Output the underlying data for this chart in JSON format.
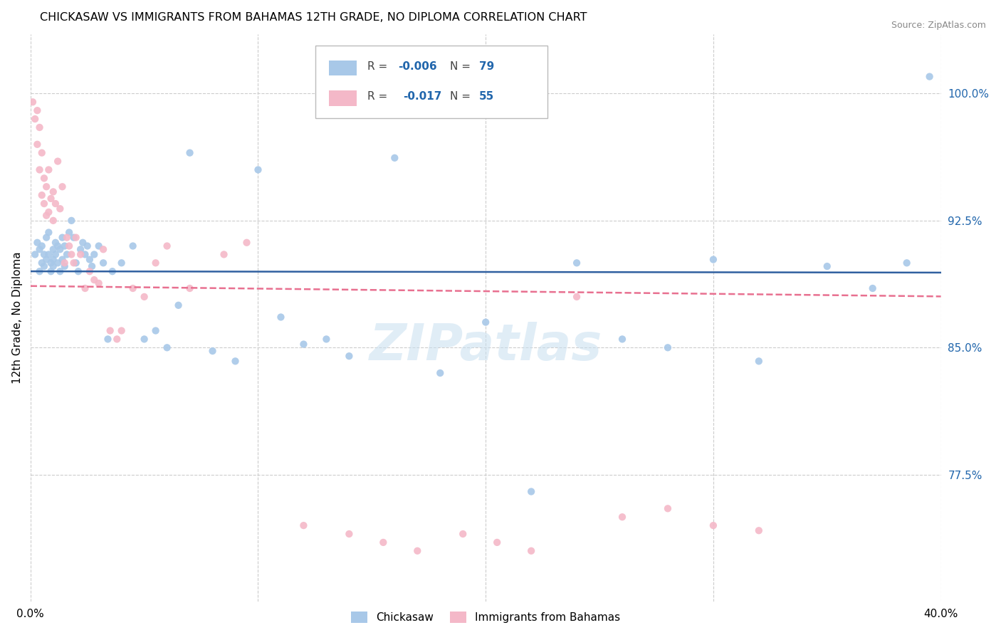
{
  "title": "CHICKASAW VS IMMIGRANTS FROM BAHAMAS 12TH GRADE, NO DIPLOMA CORRELATION CHART",
  "source": "Source: ZipAtlas.com",
  "ylabel": "12th Grade, No Diploma",
  "xlim": [
    0.0,
    40.0
  ],
  "ylim": [
    70.0,
    103.5
  ],
  "color_blue": "#a8c8e8",
  "color_pink": "#f4b8c8",
  "color_blue_line": "#3060a0",
  "color_pink_line": "#e87090",
  "watermark": "ZIPatlas",
  "chickasaw_x": [
    0.2,
    0.3,
    0.4,
    0.4,
    0.5,
    0.5,
    0.6,
    0.6,
    0.7,
    0.7,
    0.8,
    0.8,
    0.9,
    0.9,
    1.0,
    1.0,
    1.0,
    1.1,
    1.1,
    1.2,
    1.2,
    1.3,
    1.3,
    1.4,
    1.4,
    1.5,
    1.5,
    1.6,
    1.7,
    1.8,
    1.9,
    2.0,
    2.1,
    2.2,
    2.3,
    2.4,
    2.5,
    2.6,
    2.7,
    2.8,
    3.0,
    3.2,
    3.4,
    3.6,
    4.0,
    4.5,
    5.0,
    5.5,
    6.0,
    6.5,
    7.0,
    8.0,
    9.0,
    10.0,
    11.0,
    12.0,
    13.0,
    14.0,
    16.0,
    18.0,
    20.0,
    22.0,
    24.0,
    26.0,
    28.0,
    30.0,
    32.0,
    35.0,
    37.0,
    38.5,
    39.5
  ],
  "chickasaw_y": [
    90.5,
    91.2,
    90.8,
    89.5,
    91.0,
    90.0,
    90.5,
    89.8,
    91.5,
    90.2,
    91.8,
    90.5,
    90.0,
    89.5,
    90.8,
    90.2,
    89.8,
    91.2,
    90.5,
    91.0,
    90.0,
    90.8,
    89.5,
    91.5,
    90.2,
    91.0,
    89.8,
    90.5,
    91.8,
    92.5,
    91.5,
    90.0,
    89.5,
    90.8,
    91.2,
    90.5,
    91.0,
    90.2,
    89.8,
    90.5,
    91.0,
    90.0,
    85.5,
    89.5,
    90.0,
    91.0,
    85.5,
    86.0,
    85.0,
    87.5,
    96.5,
    84.8,
    84.2,
    95.5,
    86.8,
    85.2,
    85.5,
    84.5,
    96.2,
    83.5,
    86.5,
    76.5,
    90.0,
    85.5,
    85.0,
    90.2,
    84.2,
    89.8,
    88.5,
    90.0,
    101.0
  ],
  "bahamas_x": [
    0.1,
    0.2,
    0.3,
    0.3,
    0.4,
    0.4,
    0.5,
    0.5,
    0.6,
    0.6,
    0.7,
    0.7,
    0.8,
    0.8,
    0.9,
    1.0,
    1.0,
    1.1,
    1.2,
    1.3,
    1.4,
    1.5,
    1.6,
    1.7,
    1.8,
    1.9,
    2.0,
    2.2,
    2.4,
    2.6,
    2.8,
    3.0,
    3.2,
    3.5,
    3.8,
    4.0,
    4.5,
    5.0,
    5.5,
    6.0,
    7.0,
    8.5,
    9.5,
    12.0,
    14.0,
    15.5,
    17.0,
    19.0,
    20.5,
    22.0,
    24.0,
    26.0,
    28.0,
    30.0,
    32.0
  ],
  "bahamas_y": [
    99.5,
    98.5,
    97.0,
    99.0,
    95.5,
    98.0,
    94.0,
    96.5,
    93.5,
    95.0,
    92.8,
    94.5,
    93.0,
    95.5,
    93.8,
    94.2,
    92.5,
    93.5,
    96.0,
    93.2,
    94.5,
    90.0,
    91.5,
    91.0,
    90.5,
    90.0,
    91.5,
    90.5,
    88.5,
    89.5,
    89.0,
    88.8,
    90.8,
    86.0,
    85.5,
    86.0,
    88.5,
    88.0,
    90.0,
    91.0,
    88.5,
    90.5,
    91.2,
    74.5,
    74.0,
    73.5,
    73.0,
    74.0,
    73.5,
    73.0,
    88.0,
    75.0,
    75.5,
    74.5,
    74.2
  ]
}
